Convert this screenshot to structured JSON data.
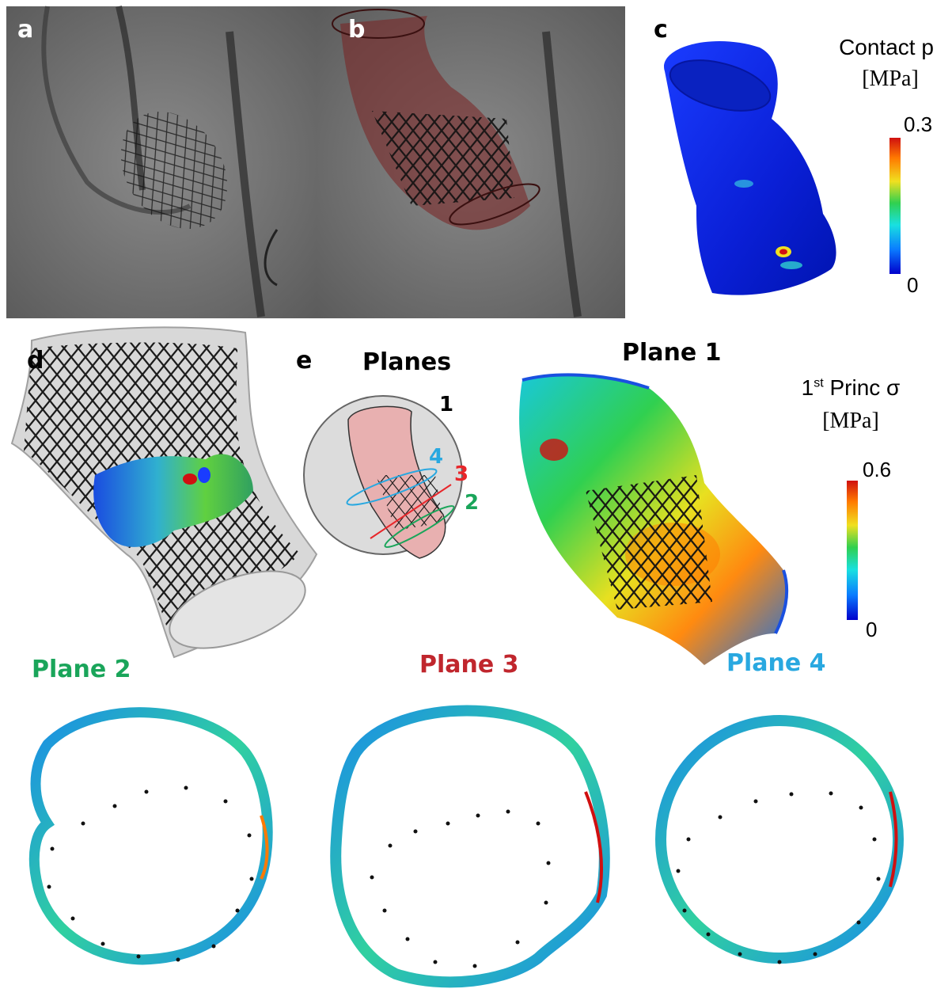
{
  "panels": {
    "a": {
      "label": "a"
    },
    "b": {
      "label": "b"
    },
    "c": {
      "label": "c"
    },
    "d": {
      "label": "d"
    },
    "e": {
      "label": "e"
    }
  },
  "colorbar_contact": {
    "title": "Contact p",
    "unit": "[MPa]",
    "max_label": "0.3",
    "min_label": "0"
  },
  "colorbar_stress": {
    "title_pre": "1",
    "title_sup": "st",
    "title_post": " Princ σ",
    "unit": "[MPa]",
    "max_label": "0.6",
    "min_label": "0"
  },
  "planes_inset": {
    "heading": "Planes",
    "markers": [
      {
        "label": "1",
        "color": "#000000"
      },
      {
        "label": "4",
        "color": "#29a8e0"
      },
      {
        "label": "3",
        "color": "#e8262a"
      },
      {
        "label": "2",
        "color": "#1aa55a"
      }
    ]
  },
  "plane_titles": {
    "plane1": {
      "text": "Plane 1",
      "color": "#000000"
    },
    "plane2": {
      "text": "Plane 2",
      "color": "#1aa55a"
    },
    "plane3": {
      "text": "Plane 3",
      "color": "#c0262d"
    },
    "plane4": {
      "text": "Plane 4",
      "color": "#29a8e0"
    }
  },
  "colormap": [
    "#0000cc",
    "#0a7cff",
    "#19e0e0",
    "#30d050",
    "#f0e020",
    "#ff7a00",
    "#d01010"
  ]
}
